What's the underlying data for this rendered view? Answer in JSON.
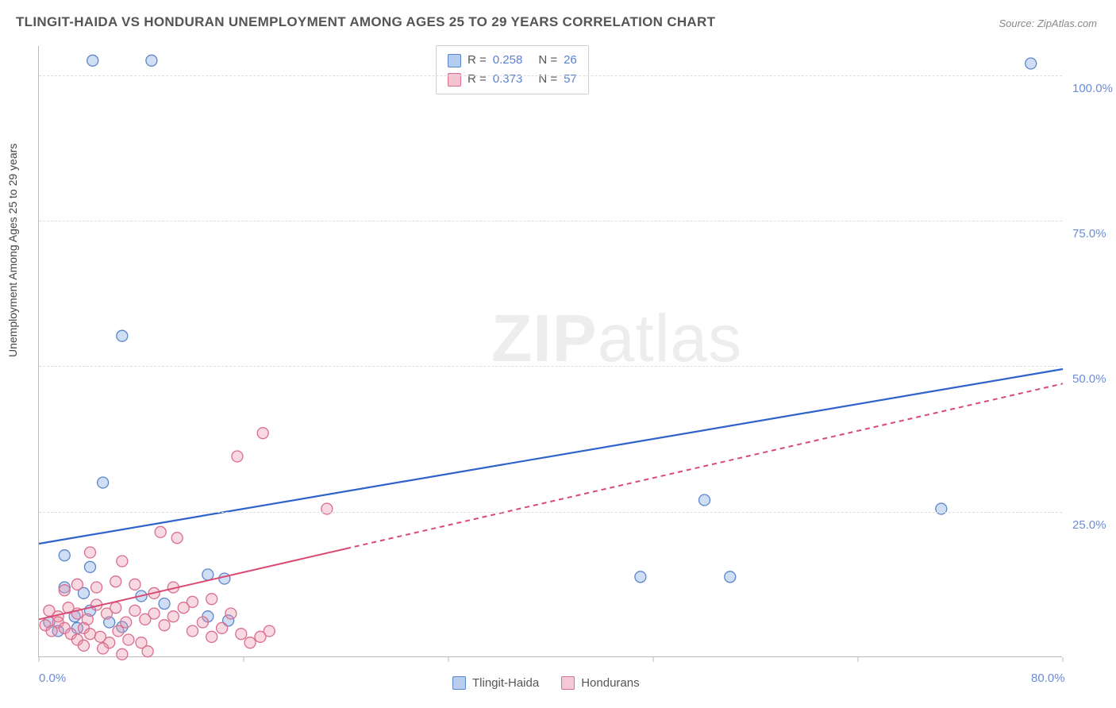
{
  "title": "TLINGIT-HAIDA VS HONDURAN UNEMPLOYMENT AMONG AGES 25 TO 29 YEARS CORRELATION CHART",
  "source": "Source: ZipAtlas.com",
  "ylabel": "Unemployment Among Ages 25 to 29 years",
  "watermark_bold": "ZIP",
  "watermark_light": "atlas",
  "chart": {
    "type": "scatter",
    "background_color": "#ffffff",
    "grid_color": "#dddddd",
    "axis_color": "#bbbbbb",
    "tick_label_color": "#6b8dd6",
    "tick_fontsize": 15,
    "title_color": "#555555",
    "title_fontsize": 17,
    "ylim": [
      0,
      105
    ],
    "xlim": [
      0,
      80
    ],
    "yticks": [
      25,
      50,
      75,
      100
    ],
    "ytick_labels": [
      "25.0%",
      "50.0%",
      "75.0%",
      "100.0%"
    ],
    "xticks": [
      0,
      80
    ],
    "xtick_labels": [
      "0.0%",
      "80.0%"
    ],
    "xtick_minor": [
      16,
      32,
      48,
      64
    ],
    "marker_radius": 7,
    "marker_stroke_width": 1.3,
    "series": [
      {
        "name": "Tlingit-Haida",
        "fill": "rgba(120,160,225,0.35)",
        "stroke": "#5b86c9",
        "r_value": "0.258",
        "n_value": "26",
        "trend": {
          "x1": 0,
          "y1": 19.5,
          "x2": 80,
          "y2": 49.5,
          "color": "#2f63c9",
          "width": 2.2,
          "dash": null,
          "solid_until_x": 80
        },
        "points": [
          [
            4.2,
            102.5
          ],
          [
            8.8,
            102.5
          ],
          [
            77.5,
            102.0
          ],
          [
            6.5,
            55.2
          ],
          [
            5.0,
            30.0
          ],
          [
            52.0,
            27.0
          ],
          [
            70.5,
            25.5
          ],
          [
            2.0,
            17.5
          ],
          [
            47.0,
            13.8
          ],
          [
            54.0,
            13.8
          ],
          [
            4.0,
            15.5
          ],
          [
            2.0,
            12.0
          ],
          [
            3.5,
            11.0
          ],
          [
            13.2,
            14.2
          ],
          [
            14.5,
            13.5
          ],
          [
            8.0,
            10.5
          ],
          [
            9.8,
            9.2
          ],
          [
            13.2,
            7.0
          ],
          [
            14.8,
            6.3
          ],
          [
            2.8,
            7.0
          ],
          [
            4.0,
            8.0
          ],
          [
            5.5,
            6.0
          ],
          [
            3.0,
            5.0
          ],
          [
            1.5,
            4.5
          ],
          [
            0.8,
            6.0
          ],
          [
            6.5,
            5.2
          ]
        ]
      },
      {
        "name": "Hondurans",
        "fill": "rgba(235,145,170,0.35)",
        "stroke": "#d96e8f",
        "r_value": "0.373",
        "n_value": "57",
        "trend": {
          "x1": 0,
          "y1": 6.5,
          "x2": 80,
          "y2": 47.0,
          "color": "#d94a72",
          "width": 2.0,
          "dash": "6,5",
          "solid_until_x": 24
        },
        "points": [
          [
            17.5,
            38.5
          ],
          [
            15.5,
            34.5
          ],
          [
            9.5,
            21.5
          ],
          [
            10.8,
            20.5
          ],
          [
            22.5,
            25.5
          ],
          [
            4.0,
            18.0
          ],
          [
            6.5,
            16.5
          ],
          [
            2.0,
            11.5
          ],
          [
            3.0,
            12.5
          ],
          [
            4.5,
            12.0
          ],
          [
            6.0,
            13.0
          ],
          [
            7.5,
            12.5
          ],
          [
            9.0,
            11.0
          ],
          [
            10.5,
            12.0
          ],
          [
            12.0,
            9.5
          ],
          [
            13.5,
            10.0
          ],
          [
            0.8,
            8.0
          ],
          [
            1.5,
            7.0
          ],
          [
            2.3,
            8.5
          ],
          [
            3.0,
            7.5
          ],
          [
            3.8,
            6.5
          ],
          [
            4.5,
            9.0
          ],
          [
            5.3,
            7.5
          ],
          [
            6.0,
            8.5
          ],
          [
            6.8,
            6.0
          ],
          [
            7.5,
            8.0
          ],
          [
            8.3,
            6.5
          ],
          [
            9.0,
            7.5
          ],
          [
            9.8,
            5.5
          ],
          [
            10.5,
            7.0
          ],
          [
            11.3,
            8.5
          ],
          [
            12.0,
            4.5
          ],
          [
            12.8,
            6.0
          ],
          [
            13.5,
            3.5
          ],
          [
            14.3,
            5.0
          ],
          [
            15.0,
            7.5
          ],
          [
            15.8,
            4.0
          ],
          [
            16.5,
            2.5
          ],
          [
            17.3,
            3.5
          ],
          [
            18.0,
            4.5
          ],
          [
            0.5,
            5.5
          ],
          [
            1.0,
            4.5
          ],
          [
            1.5,
            6.0
          ],
          [
            2.0,
            5.0
          ],
          [
            2.5,
            4.0
          ],
          [
            3.0,
            3.0
          ],
          [
            3.5,
            5.0
          ],
          [
            4.0,
            4.0
          ],
          [
            4.8,
            3.5
          ],
          [
            5.5,
            2.5
          ],
          [
            6.2,
            4.5
          ],
          [
            7.0,
            3.0
          ],
          [
            8.0,
            2.5
          ],
          [
            8.5,
            1.0
          ],
          [
            6.5,
            0.5
          ],
          [
            5.0,
            1.5
          ],
          [
            3.5,
            2.0
          ]
        ]
      }
    ],
    "legend_bottom": [
      {
        "label": "Tlingit-Haida",
        "fill": "#b9cdee",
        "stroke": "#5b86c9"
      },
      {
        "label": "Hondurans",
        "fill": "#f4c8d4",
        "stroke": "#d96e8f"
      }
    ]
  }
}
